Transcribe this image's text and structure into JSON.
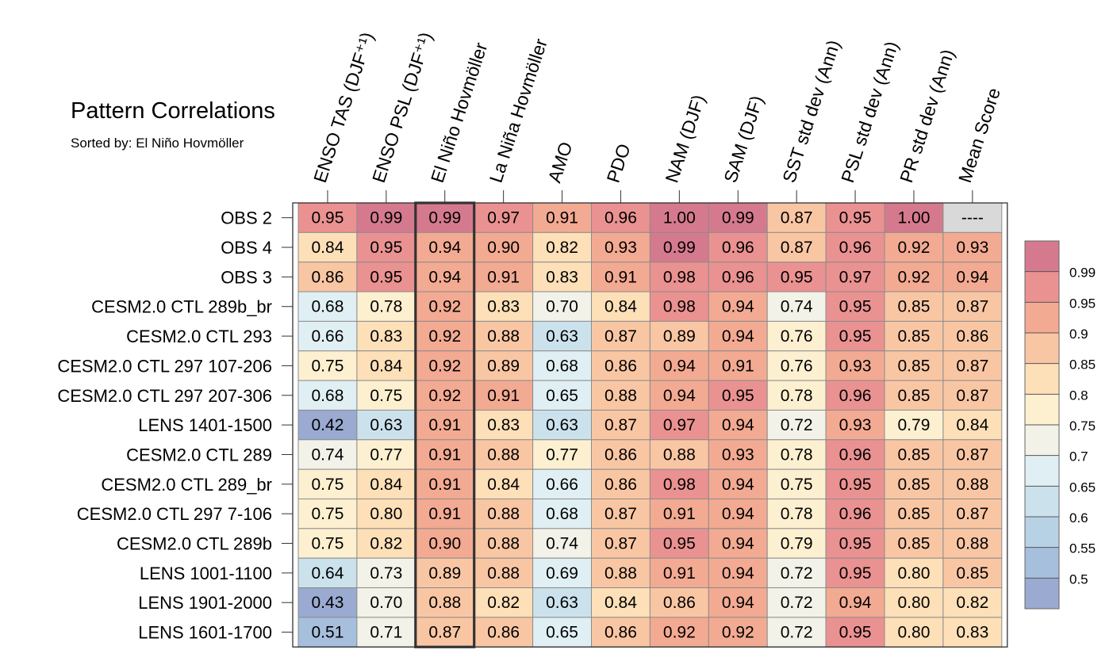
{
  "chart_data": {
    "type": "heatmap",
    "title": "Pattern Correlations",
    "subtitle": "Sorted by: El Niño Hovmöller",
    "columns": [
      "ENSO TAS (DJF⁺¹)",
      "ENSO PSL (DJF⁺¹)",
      "El Niño Hovmöller",
      "La Niña Hovmöller",
      "AMO",
      "PDO",
      "NAM (DJF)",
      "SAM (DJF)",
      "SST std dev (Ann)",
      "PSL std dev (Ann)",
      "PR std dev (Ann)",
      "Mean Score"
    ],
    "rows": [
      "OBS 2",
      "OBS 4",
      "OBS 3",
      "CESM2.0 CTL 289b_br",
      "CESM2.0 CTL 293",
      "CESM2.0 CTL 297 107-206",
      "CESM2.0 CTL 297 207-306",
      "LENS 1401-1500",
      "CESM2.0 CTL 289",
      "CESM2.0 CTL 289_br",
      "CESM2.0 CTL 297 7-106",
      "CESM2.0 CTL 289b",
      "LENS 1001-1100",
      "LENS 1901-2000",
      "LENS 1601-1700"
    ],
    "values": [
      [
        0.95,
        0.99,
        0.99,
        0.97,
        0.91,
        0.96,
        1.0,
        0.99,
        0.87,
        0.95,
        1.0,
        null
      ],
      [
        0.84,
        0.95,
        0.94,
        0.9,
        0.82,
        0.93,
        0.99,
        0.96,
        0.87,
        0.96,
        0.92,
        0.93
      ],
      [
        0.86,
        0.95,
        0.94,
        0.91,
        0.83,
        0.91,
        0.98,
        0.96,
        0.95,
        0.97,
        0.92,
        0.94
      ],
      [
        0.68,
        0.78,
        0.92,
        0.83,
        0.7,
        0.84,
        0.98,
        0.94,
        0.74,
        0.95,
        0.85,
        0.87
      ],
      [
        0.66,
        0.83,
        0.92,
        0.88,
        0.63,
        0.87,
        0.89,
        0.94,
        0.76,
        0.95,
        0.85,
        0.86
      ],
      [
        0.75,
        0.84,
        0.92,
        0.89,
        0.68,
        0.86,
        0.94,
        0.91,
        0.76,
        0.93,
        0.85,
        0.87
      ],
      [
        0.68,
        0.75,
        0.92,
        0.91,
        0.65,
        0.88,
        0.94,
        0.95,
        0.78,
        0.96,
        0.85,
        0.87
      ],
      [
        0.42,
        0.63,
        0.91,
        0.83,
        0.63,
        0.87,
        0.97,
        0.94,
        0.72,
        0.93,
        0.79,
        0.84
      ],
      [
        0.74,
        0.77,
        0.91,
        0.88,
        0.77,
        0.86,
        0.88,
        0.93,
        0.78,
        0.96,
        0.85,
        0.87
      ],
      [
        0.75,
        0.84,
        0.91,
        0.84,
        0.66,
        0.86,
        0.98,
        0.94,
        0.75,
        0.95,
        0.85,
        0.88
      ],
      [
        0.75,
        0.8,
        0.91,
        0.88,
        0.68,
        0.87,
        0.91,
        0.94,
        0.78,
        0.96,
        0.85,
        0.87
      ],
      [
        0.75,
        0.82,
        0.9,
        0.88,
        0.74,
        0.87,
        0.95,
        0.94,
        0.79,
        0.95,
        0.85,
        0.88
      ],
      [
        0.64,
        0.73,
        0.89,
        0.88,
        0.69,
        0.88,
        0.91,
        0.94,
        0.72,
        0.95,
        0.8,
        0.85
      ],
      [
        0.43,
        0.7,
        0.88,
        0.82,
        0.63,
        0.84,
        0.86,
        0.94,
        0.72,
        0.94,
        0.8,
        0.82
      ],
      [
        0.51,
        0.71,
        0.87,
        0.86,
        0.65,
        0.86,
        0.92,
        0.92,
        0.72,
        0.95,
        0.8,
        0.83
      ]
    ],
    "missing_label": "----",
    "highlighted_column": "El Niño Hovmöller",
    "colorbar": {
      "levels": [
        0.5,
        0.55,
        0.6,
        0.65,
        0.7,
        0.75,
        0.8,
        0.85,
        0.9,
        0.95,
        0.99
      ],
      "labels": [
        "0.5",
        "0.55",
        "0.6",
        "0.65",
        "0.7",
        "0.75",
        "0.8",
        "0.85",
        "0.9",
        "0.95",
        "0.99"
      ],
      "colors": [
        "#9aaad0",
        "#a6bfdc",
        "#b8d2e5",
        "#cbe2ec",
        "#e0eff3",
        "#f2f2e9",
        "#fdf0d0",
        "#fddfb8",
        "#f9c6a4",
        "#f3aa92",
        "#ea9291",
        "#d57a8e"
      ]
    },
    "missing_color": "#d9d9d9"
  }
}
